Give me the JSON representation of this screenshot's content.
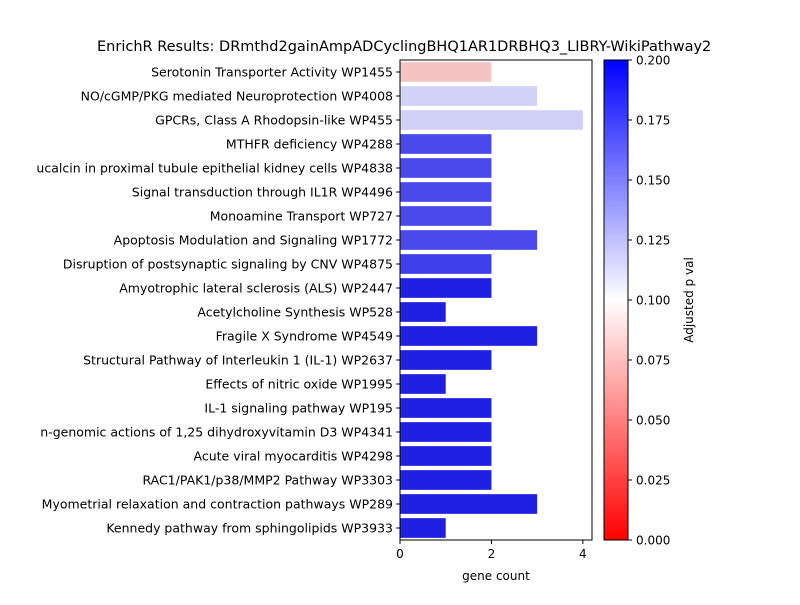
{
  "chart_data": {
    "type": "bar",
    "orientation": "horizontal",
    "title": "EnrichR Results: DRmthd2gainAmpADCyclingBHQ1AR1DRBHQ3_LIBRY-WikiPathway2",
    "xlabel": "gene count",
    "ylabel": "",
    "xlim": [
      0,
      4.2
    ],
    "xticks": [
      "0",
      "2",
      "4"
    ],
    "categories": [
      "Serotonin Transporter Activity WP1455",
      "NO/cGMP/PKG mediated Neuroprotection WP4008",
      "GPCRs, Class A Rhodopsin-like WP455",
      "MTHFR deficiency WP4288",
      "ucalcin in proximal tubule epithelial kidney cells WP4838",
      "Signal transduction through IL1R WP4496",
      "Monoamine Transport WP727",
      "Apoptosis Modulation and Signaling WP1772",
      "Disruption of postsynaptic signaling by CNV WP4875",
      "Amyotrophic lateral sclerosis (ALS) WP2447",
      "Acetylcholine Synthesis WP528",
      "Fragile X Syndrome  WP4549",
      "Structural Pathway of Interleukin 1 (IL-1) WP2637",
      "Effects of nitric oxide WP1995",
      "IL-1 signaling pathway WP195",
      "n-genomic actions of 1,25 dihydroxyvitamin D3 WP4341",
      "Acute viral myocarditis WP4298",
      "RAC1/PAK1/p38/MMP2 Pathway WP3303",
      "Myometrial relaxation and contraction pathways WP289",
      "Kennedy pathway from sphingolipids WP3933"
    ],
    "values": [
      2,
      3,
      4,
      2,
      2,
      2,
      2,
      3,
      2,
      2,
      1,
      3,
      2,
      1,
      2,
      2,
      2,
      2,
      3,
      1
    ],
    "colors": [
      "#f4c3c3",
      "#d2d2f8",
      "#d0d0f7",
      "#4a4aeb",
      "#4a4aeb",
      "#4a4aeb",
      "#4a4aeb",
      "#4a4aeb",
      "#3f3fe9",
      "#2020e2",
      "#2020e2",
      "#2020e2",
      "#2020e2",
      "#2020e2",
      "#2020e2",
      "#2020e2",
      "#2020e2",
      "#2020e2",
      "#2020e2",
      "#2020e2"
    ],
    "colorbar": {
      "label": "Adjusted p val",
      "range": [
        0,
        0.2
      ],
      "ticks": [
        "0.000",
        "0.025",
        "0.050",
        "0.075",
        "0.100",
        "0.125",
        "0.150",
        "0.175",
        "0.200"
      ],
      "colormap": [
        "#ff0000",
        "#ffffff",
        "#0000ff"
      ]
    }
  }
}
